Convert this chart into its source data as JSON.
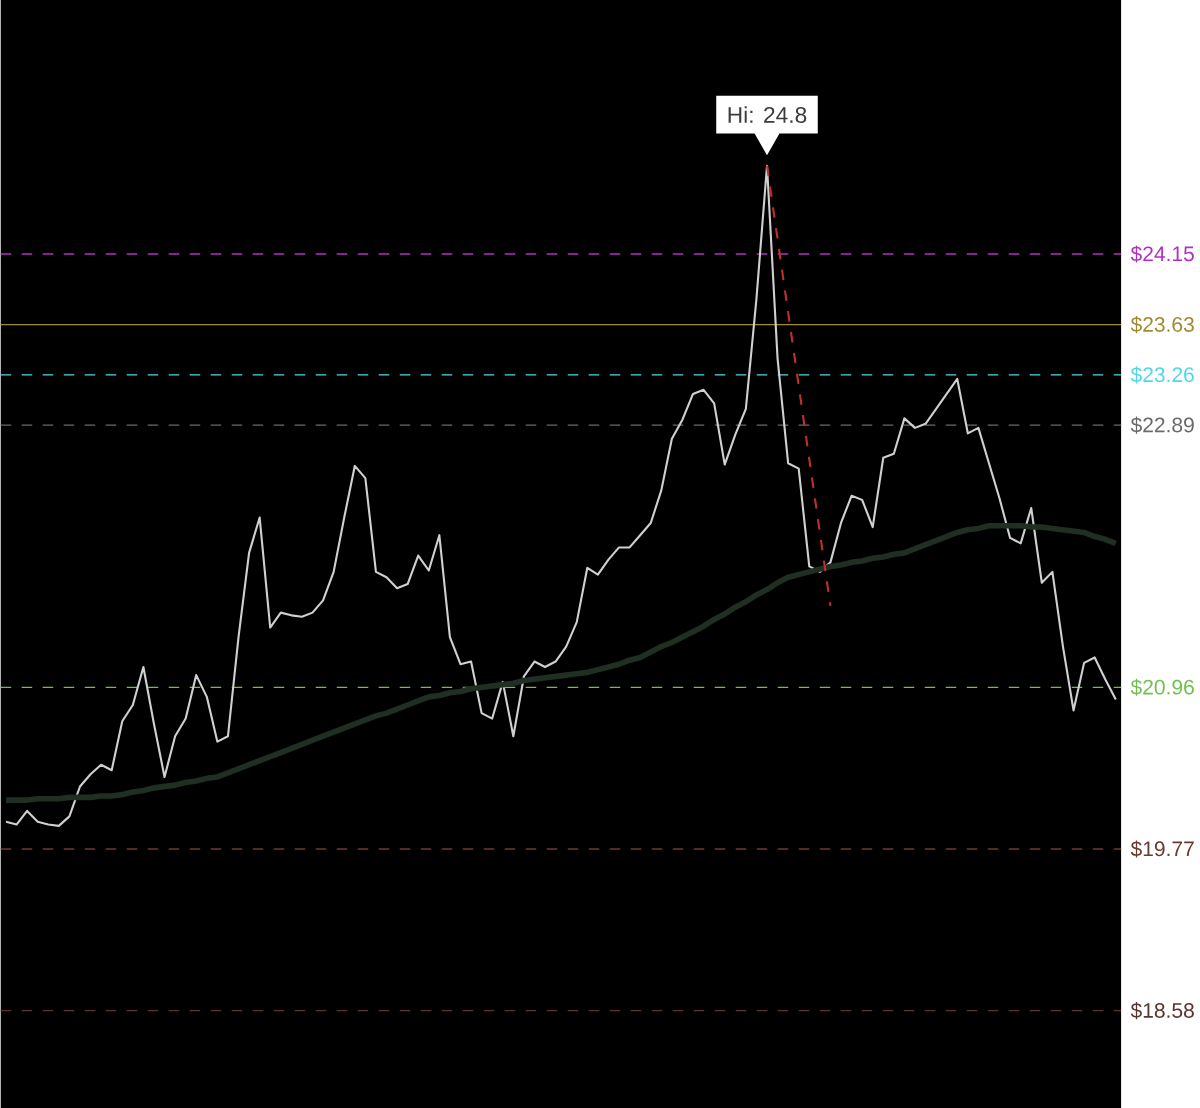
{
  "chart_data": {
    "type": "line",
    "categories": [
      null,
      null,
      null,
      null,
      null,
      null,
      null,
      null,
      null,
      null,
      null,
      null,
      null,
      null,
      null,
      null,
      null,
      null,
      null,
      null,
      null,
      null,
      null,
      null,
      null,
      null,
      null,
      null,
      null,
      null,
      null,
      null,
      null,
      null,
      null,
      null,
      null,
      null,
      null,
      null,
      null,
      null,
      null,
      null,
      null,
      null,
      null,
      null,
      null,
      null,
      null,
      null,
      null,
      null,
      null,
      null,
      null,
      null,
      null,
      null,
      null,
      null,
      null,
      null,
      null,
      null,
      null,
      null,
      null,
      null,
      null,
      null,
      null,
      null,
      null,
      null,
      null,
      null,
      null,
      null,
      null,
      null,
      null,
      null,
      null,
      null,
      null,
      null,
      null,
      null,
      null,
      null,
      null,
      null,
      null,
      null,
      null,
      null,
      null,
      null,
      null,
      null,
      null,
      null,
      null,
      null
    ],
    "series": [
      {
        "color": "#d0d0d0",
        "values": [
          19.97,
          19.95,
          20.05,
          19.97,
          19.95,
          19.94,
          20.01,
          20.23,
          20.32,
          20.39,
          20.35,
          20.71,
          20.83,
          21.11,
          20.69,
          20.3,
          20.6,
          20.73,
          21.05,
          20.89,
          20.56,
          20.6,
          21.33,
          21.95,
          22.21,
          21.4,
          21.51,
          21.49,
          21.48,
          21.51,
          21.6,
          21.81,
          22.21,
          22.59,
          22.5,
          21.81,
          21.77,
          21.69,
          21.72,
          21.93,
          21.82,
          22.08,
          21.33,
          21.13,
          21.15,
          20.77,
          20.73,
          21.0,
          20.6,
          21.04,
          21.15,
          21.11,
          21.15,
          21.26,
          21.44,
          21.84,
          21.79,
          21.9,
          21.99,
          21.99,
          22.08,
          22.17,
          22.41,
          22.79,
          22.93,
          23.12,
          23.15,
          23.05,
          22.6,
          22.82,
          23.01,
          23.82,
          24.8,
          23.38,
          22.61,
          22.57,
          21.85,
          21.81,
          21.88,
          22.17,
          22.37,
          22.34,
          22.14,
          22.65,
          22.68,
          22.94,
          22.87,
          22.9,
          23.01,
          23.12,
          23.23,
          22.83,
          22.87,
          22.61,
          22.35,
          22.06,
          22.02,
          22.28,
          21.73,
          21.81,
          21.26,
          20.79,
          21.14,
          21.18,
          21.02,
          20.87
        ]
      },
      {
        "color": "#1f2f22",
        "values": [
          20.13,
          20.13,
          20.13,
          20.14,
          20.14,
          20.14,
          20.15,
          20.15,
          20.15,
          20.16,
          20.16,
          20.17,
          20.19,
          20.2,
          20.22,
          20.23,
          20.24,
          20.26,
          20.27,
          20.29,
          20.3,
          20.33,
          20.36,
          20.39,
          20.42,
          20.45,
          20.48,
          20.51,
          20.54,
          20.57,
          20.6,
          20.63,
          20.66,
          20.69,
          20.72,
          20.75,
          20.77,
          20.8,
          20.83,
          20.86,
          20.89,
          20.9,
          20.92,
          20.93,
          20.95,
          20.96,
          20.97,
          20.98,
          20.99,
          21.01,
          21.02,
          21.03,
          21.04,
          21.05,
          21.06,
          21.07,
          21.09,
          21.11,
          21.13,
          21.16,
          21.18,
          21.22,
          21.26,
          21.29,
          21.33,
          21.37,
          21.41,
          21.46,
          21.5,
          21.55,
          21.59,
          21.64,
          21.68,
          21.73,
          21.77,
          21.79,
          21.81,
          21.83,
          21.85,
          21.86,
          21.88,
          21.89,
          21.91,
          21.92,
          21.94,
          21.95,
          21.98,
          22.01,
          22.04,
          22.07,
          22.1,
          22.12,
          22.13,
          22.15,
          22.15,
          22.15,
          22.15,
          22.14,
          22.14,
          22.13,
          22.12,
          22.11,
          22.1,
          22.07,
          22.05,
          22.02
        ]
      },
      {
        "color": "#c0302a",
        "line_style": "dashed",
        "values": [
          null,
          null,
          null,
          null,
          null,
          null,
          null,
          null,
          null,
          null,
          null,
          null,
          null,
          null,
          null,
          null,
          null,
          null,
          null,
          null,
          null,
          null,
          null,
          null,
          null,
          null,
          null,
          null,
          null,
          null,
          null,
          null,
          null,
          null,
          null,
          null,
          null,
          null,
          null,
          null,
          null,
          null,
          null,
          null,
          null,
          null,
          null,
          null,
          null,
          null,
          null,
          null,
          null,
          null,
          null,
          null,
          null,
          null,
          null,
          null,
          null,
          null,
          null,
          null,
          null,
          null,
          null,
          null,
          null,
          null,
          null,
          null,
          24.8,
          24.26,
          23.72,
          23.18,
          22.64,
          22.1,
          21.56,
          null,
          null,
          null,
          null,
          null,
          null,
          null,
          null,
          null,
          null,
          null,
          null,
          null,
          null,
          null,
          null,
          null,
          null,
          null,
          null,
          null,
          null,
          null,
          null,
          null,
          null,
          null
        ]
      }
    ],
    "ylim": [
      17.86,
      26.02
    ],
    "yticks": [
      {
        "value": 24.15,
        "label": "$24.15"
      },
      {
        "value": 23.63,
        "label": "$23.63"
      },
      {
        "value": 23.26,
        "label": "$23.26"
      },
      {
        "value": 22.89,
        "label": "$22.89"
      },
      {
        "value": 20.96,
        "label": "$20.96"
      },
      {
        "value": 19.77,
        "label": "$19.77"
      },
      {
        "value": 18.58,
        "label": "$18.58"
      }
    ],
    "tick_labels": "y",
    "marker": "none",
    "annotations": [
      {
        "text": "Hi: 24.8",
        "y": 24.8
      }
    ],
    "ref_lines": [
      {
        "axis": "y",
        "value": 24.15,
        "color": "#b030c0",
        "line_style": "dashed"
      },
      {
        "axis": "y",
        "value": 23.63,
        "color": "#a08a30",
        "line_style": "solid"
      },
      {
        "axis": "y",
        "value": 23.26,
        "color": "#50d8e8",
        "line_style": "dashed"
      },
      {
        "axis": "y",
        "value": 22.89,
        "color": "#6a6a6a",
        "line_style": "dashed"
      },
      {
        "axis": "y",
        "value": 20.96,
        "color": "#70c050",
        "line_style": "dashed"
      },
      {
        "axis": "y",
        "value": 19.77,
        "color": "#6a3a30",
        "line_style": "dashed"
      },
      {
        "axis": "y",
        "value": 18.58,
        "color": "#5a3530",
        "line_style": "dashed"
      }
    ]
  }
}
